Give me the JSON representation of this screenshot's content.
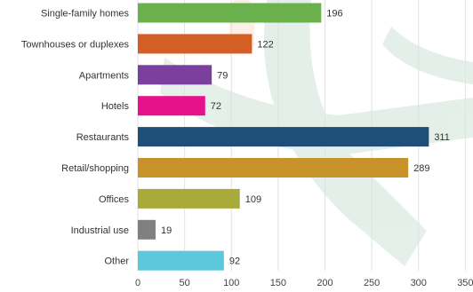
{
  "chart_data": {
    "type": "bar",
    "orientation": "horizontal",
    "title": "",
    "xlabel": "",
    "ylabel": "",
    "categories": [
      "Single-family homes",
      "Townhouses or duplexes",
      "Apartments",
      "Hotels",
      "Restaurants",
      "Retail/shopping",
      "Offices",
      "Industrial use",
      "Other"
    ],
    "values": [
      196,
      122,
      79,
      72,
      311,
      289,
      109,
      19,
      92
    ],
    "colors": [
      "#6ab04c",
      "#d35f24",
      "#7b3f9e",
      "#e5128b",
      "#1f4e79",
      "#c8922a",
      "#a8ab3a",
      "#808080",
      "#5bc8dc"
    ],
    "xlim": [
      0,
      350
    ],
    "xticks": [
      0,
      50,
      100,
      150,
      200,
      250,
      300,
      350
    ],
    "grid": "vertical",
    "legend": "none"
  }
}
